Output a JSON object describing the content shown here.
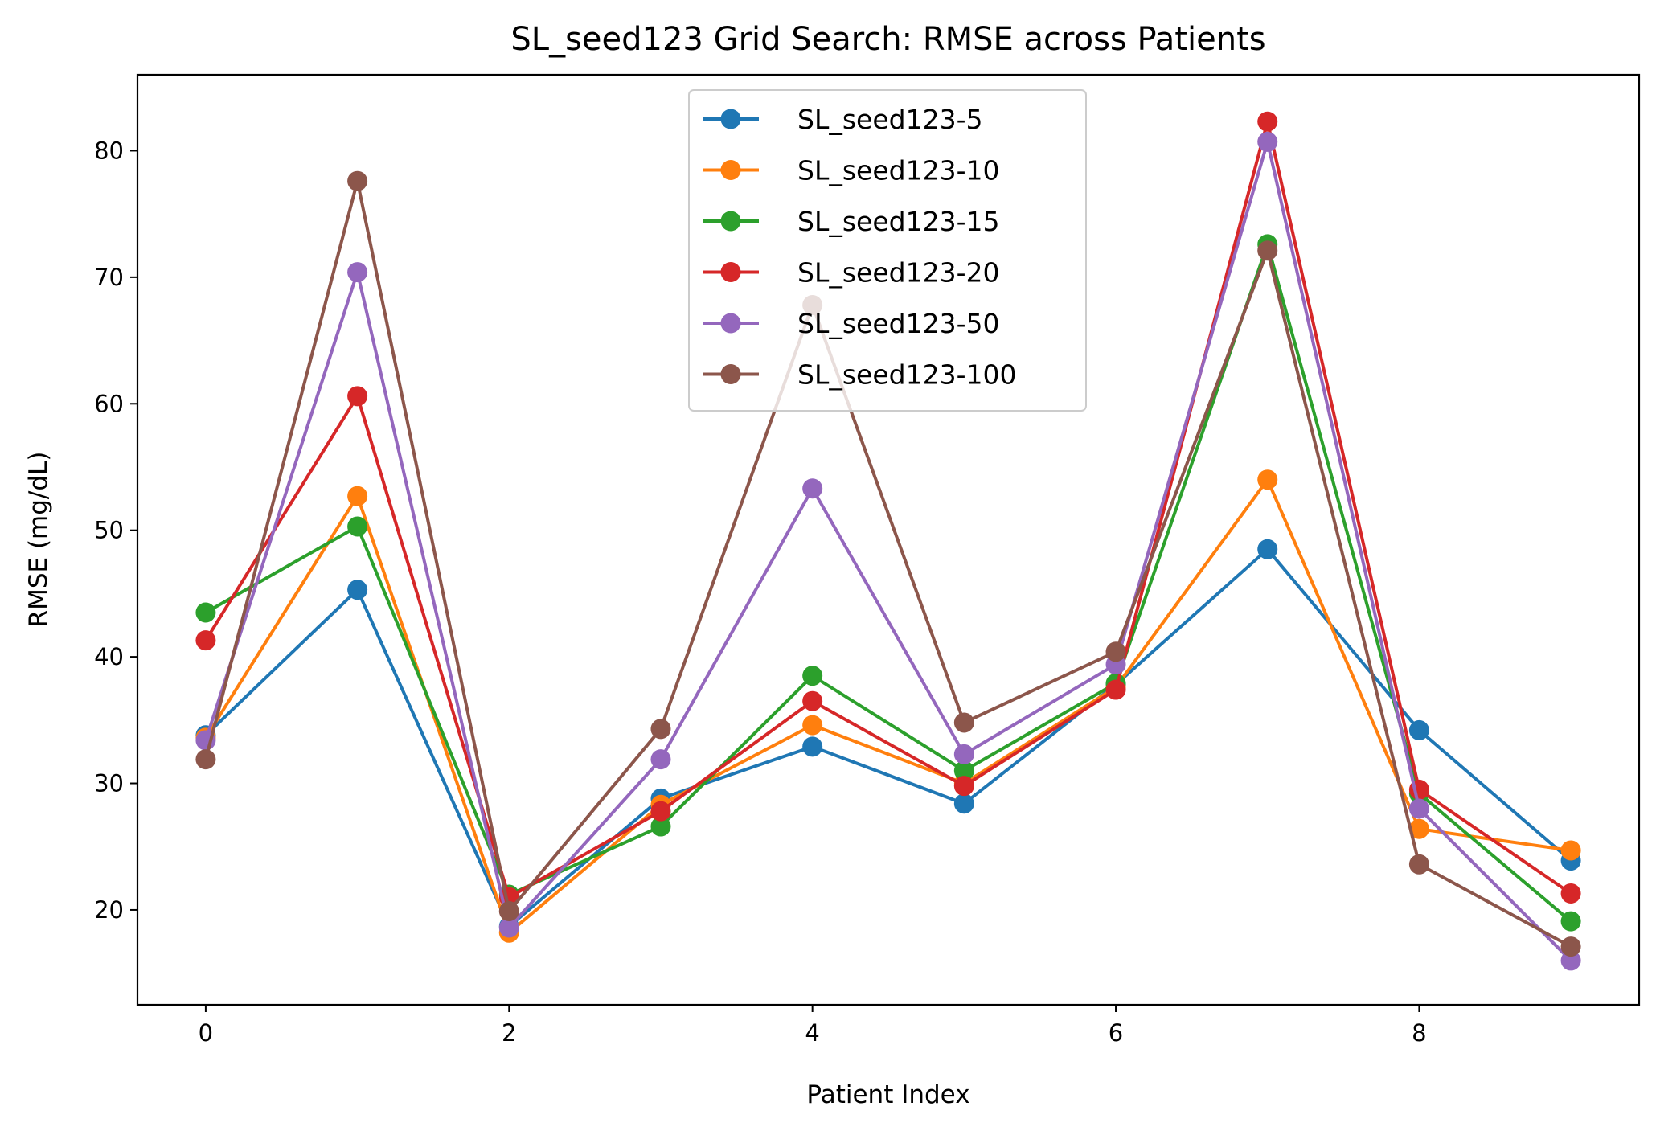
{
  "chart_data": {
    "type": "line",
    "title": "SL_seed123 Grid Search: RMSE across Patients",
    "xlabel": "Patient Index",
    "ylabel": "RMSE (mg/dL)",
    "xlim": [
      -0.45,
      9.45
    ],
    "ylim": [
      12.5,
      86
    ],
    "xticks": [
      0,
      2,
      4,
      6,
      8
    ],
    "yticks": [
      20,
      30,
      40,
      50,
      60,
      70,
      80
    ],
    "grid": false,
    "legend_position": "upper center",
    "x": [
      0,
      1,
      2,
      3,
      4,
      5,
      6,
      7,
      8,
      9
    ],
    "series": [
      {
        "name": "SL_seed123-5",
        "color": "#1f77b4",
        "values": [
          33.8,
          45.3,
          18.7,
          28.8,
          32.9,
          28.4,
          37.8,
          48.5,
          34.2,
          23.9
        ]
      },
      {
        "name": "SL_seed123-10",
        "color": "#ff7f0e",
        "values": [
          33.6,
          52.7,
          18.2,
          28.3,
          34.6,
          30.0,
          37.6,
          54.0,
          26.4,
          24.7
        ]
      },
      {
        "name": "SL_seed123-15",
        "color": "#2ca02c",
        "values": [
          43.5,
          50.3,
          21.2,
          26.6,
          38.5,
          31.0,
          37.9,
          72.6,
          29.2,
          19.1
        ]
      },
      {
        "name": "SL_seed123-20",
        "color": "#d62728",
        "values": [
          41.3,
          60.6,
          21.0,
          27.8,
          36.5,
          29.8,
          37.4,
          82.3,
          29.5,
          21.3
        ]
      },
      {
        "name": "SL_seed123-50",
        "color": "#9467bd",
        "values": [
          33.4,
          70.4,
          18.6,
          31.9,
          53.3,
          32.3,
          39.4,
          80.7,
          28.0,
          16.0
        ]
      },
      {
        "name": "SL_seed123-100",
        "color": "#8c564b",
        "values": [
          31.9,
          77.6,
          19.9,
          34.3,
          67.8,
          34.8,
          40.4,
          72.1,
          23.6,
          17.1
        ]
      }
    ]
  }
}
